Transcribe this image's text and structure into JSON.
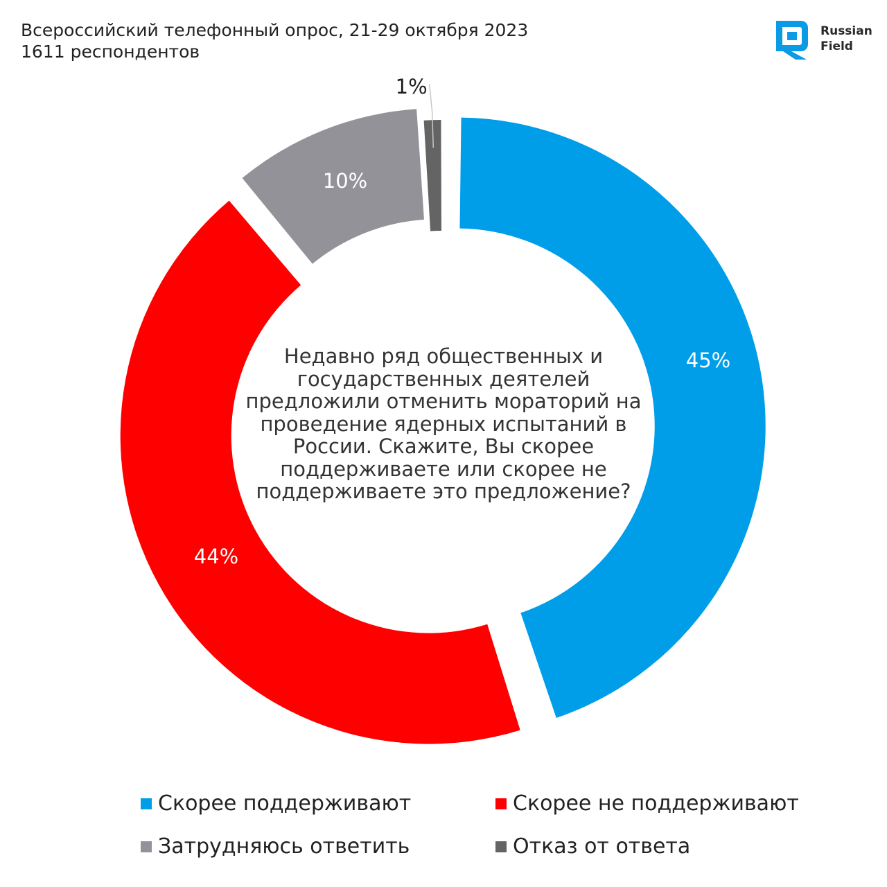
{
  "header": {
    "line1": "Всероссийский телефонный опрос, 21-29 октября 2023",
    "line2": "1611 респондентов"
  },
  "logo": {
    "icon": "russian-field-logo-icon",
    "line1": "Russian",
    "line2": "Field",
    "color": "#0b9be4"
  },
  "chart_data": {
    "type": "pie",
    "subtype": "donut",
    "center_text": "Недавно ряд общественных и государственных деятелей предложили отменить мораторий на проведение ядерных испытаний в России. Скажите, Вы скорее поддерживаете или скорее не поддерживаете это предложение?",
    "categories": [
      "Скорее поддерживают",
      "Скорее не поддерживают",
      "Затрудняюсь ответить",
      "Отказ от ответа"
    ],
    "values": [
      45,
      44,
      10,
      1
    ],
    "labels": [
      "45%",
      "44%",
      "10%",
      "1%"
    ],
    "colors": [
      "#009ee8",
      "#ff0000",
      "#939299",
      "#646464"
    ],
    "legend_position": "bottom"
  }
}
